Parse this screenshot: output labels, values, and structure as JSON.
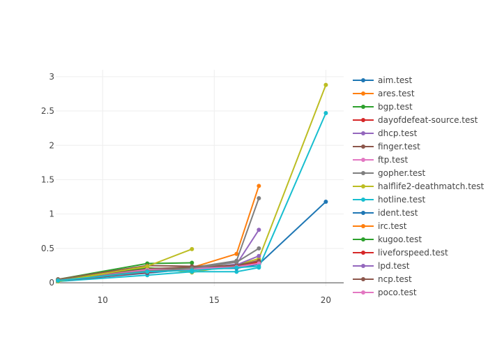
{
  "chart_data": {
    "type": "line",
    "title": "",
    "xlabel": "",
    "ylabel": "",
    "xlim": [
      7.9,
      20.8
    ],
    "ylim": [
      -0.05,
      3.1
    ],
    "x_ticks": [
      10,
      15,
      20
    ],
    "x_tick_labels": [
      "10",
      "15",
      "20"
    ],
    "y_ticks": [
      0,
      0.5,
      1,
      1.5,
      2,
      2.5,
      3
    ],
    "y_tick_labels": [
      "0",
      "0.5",
      "1",
      "1.5",
      "2",
      "2.5",
      "3"
    ],
    "grid": true,
    "legend_position": "right",
    "series": [
      {
        "name": "aim.test",
        "color": "#1f77b4",
        "x": [
          8,
          12,
          14,
          16,
          17,
          20
        ],
        "y": [
          0.03,
          0.15,
          0.19,
          0.22,
          0.27,
          1.18
        ]
      },
      {
        "name": "ares.test",
        "color": "#ff7f0e",
        "x": [
          8,
          12,
          14,
          16,
          17
        ],
        "y": [
          0.02,
          0.15,
          0.22,
          0.42,
          1.41
        ]
      },
      {
        "name": "bgp.test",
        "color": "#2ca02c",
        "x": [
          8,
          12,
          14
        ],
        "y": [
          0.05,
          0.28,
          0.29
        ]
      },
      {
        "name": "dayofdefeat-source.test",
        "color": "#d62728",
        "x": [
          8,
          12,
          14,
          16,
          17
        ],
        "y": [
          0.04,
          0.17,
          0.22,
          0.25,
          0.3
        ]
      },
      {
        "name": "dhcp.test",
        "color": "#9467bd",
        "x": [
          8,
          12,
          14,
          16,
          17
        ],
        "y": [
          0.03,
          0.16,
          0.2,
          0.27,
          0.77
        ]
      },
      {
        "name": "finger.test",
        "color": "#8c564b",
        "x": [
          8,
          12,
          14,
          16,
          17
        ],
        "y": [
          0.05,
          0.25,
          0.24,
          0.25,
          0.29
        ]
      },
      {
        "name": "ftp.test",
        "color": "#e377c2",
        "x": [
          8,
          12,
          14,
          16,
          17
        ],
        "y": [
          0.03,
          0.2,
          0.21,
          0.24,
          0.33
        ]
      },
      {
        "name": "gopher.test",
        "color": "#7f7f7f",
        "x": [
          8,
          12,
          14,
          16,
          17
        ],
        "y": [
          0.03,
          0.17,
          0.22,
          0.32,
          1.23
        ]
      },
      {
        "name": "halflife2-deathmatch.test",
        "color": "#bcbd22",
        "x": [
          8,
          12,
          14,
          16,
          17,
          20
        ],
        "y": [
          0.04,
          0.22,
          0.15,
          0.26,
          0.35,
          2.88
        ]
      },
      {
        "name": "hotline.test",
        "color": "#17becf",
        "x": [
          8,
          12,
          14,
          16,
          17,
          20
        ],
        "y": [
          0.02,
          0.11,
          0.16,
          0.16,
          0.22,
          2.47
        ]
      },
      {
        "name": "ident.test",
        "color": "#1f77b4",
        "x": [
          8,
          12,
          14,
          16,
          17
        ],
        "y": [
          0.03,
          0.14,
          0.2,
          0.21,
          0.27
        ]
      },
      {
        "name": "irc.test",
        "color": "#ff7f0e",
        "x": [
          8,
          12,
          14,
          16,
          17
        ],
        "y": [
          0.03,
          0.17,
          0.19,
          0.24,
          0.29
        ]
      },
      {
        "name": "kugoo.test",
        "color": "#2ca02c",
        "x": [
          8,
          12,
          14,
          16,
          17
        ],
        "y": [
          0.04,
          0.21,
          0.21,
          0.26,
          0.31
        ]
      },
      {
        "name": "liveforspeed.test",
        "color": "#d62728",
        "x": [
          8,
          12,
          14,
          16,
          17
        ],
        "y": [
          0.03,
          0.15,
          0.21,
          0.25,
          0.3
        ]
      },
      {
        "name": "lpd.test",
        "color": "#9467bd",
        "x": [
          8,
          12,
          14,
          16,
          17
        ],
        "y": [
          0.03,
          0.18,
          0.2,
          0.26,
          0.39
        ]
      },
      {
        "name": "ncp.test",
        "color": "#8c564b",
        "x": [
          8,
          12,
          14,
          16,
          17
        ],
        "y": [
          0.04,
          0.2,
          0.23,
          0.25,
          0.32
        ]
      },
      {
        "name": "poco.test",
        "color": "#e377c2",
        "x": [
          8,
          12,
          14,
          16,
          17
        ],
        "y": [
          0.03,
          0.19,
          0.2,
          0.23,
          0.28
        ]
      },
      {
        "name": "",
        "color": "#7f7f7f",
        "x": [
          8,
          12,
          14,
          16,
          17
        ],
        "y": [
          0.04,
          0.17,
          0.21,
          0.3,
          0.5
        ]
      },
      {
        "name": "",
        "color": "#bcbd22",
        "x": [
          8,
          12,
          14
        ],
        "y": [
          0.02,
          0.24,
          0.49
        ]
      },
      {
        "name": "",
        "color": "#17becf",
        "x": [
          8,
          12,
          14,
          16,
          17
        ],
        "y": [
          0.03,
          0.16,
          0.18,
          0.22,
          0.24
        ]
      }
    ]
  }
}
